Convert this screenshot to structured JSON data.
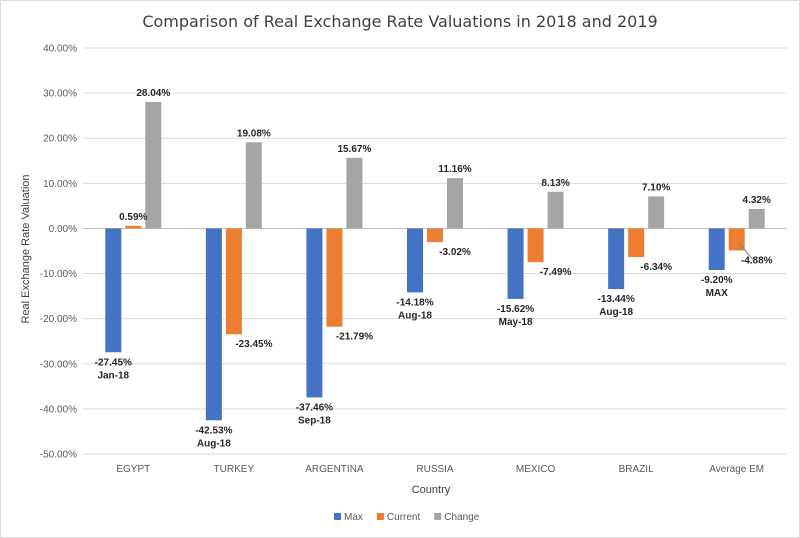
{
  "chart_data": {
    "type": "bar",
    "title": "Comparison of Real Exchange Rate Valuations in 2018 and 2019",
    "xlabel": "Country",
    "ylabel": "Real Exchange Rate Valuation",
    "ylim": [
      -50,
      40
    ],
    "ytick_step": 10,
    "ytick_labels": [
      "40.00%",
      "30.00%",
      "20.00%",
      "10.00%",
      "0.00%",
      "-10.00%",
      "-20.00%",
      "-30.00%",
      "-40.00%",
      "-50.00%"
    ],
    "grid": true,
    "legend_position": "bottom",
    "categories": [
      "EGYPT",
      "TURKEY",
      "ARGENTINA",
      "RUSSIA",
      "MEXICO",
      "BRAZIL",
      "Average EM"
    ],
    "series": [
      {
        "name": "Max",
        "color": "#4472c4",
        "values": [
          -27.45,
          -42.53,
          -37.46,
          -14.18,
          -15.62,
          -13.44,
          -9.2
        ],
        "labels": [
          "-27.45%",
          "-42.53%",
          "-37.46%",
          "-14.18%",
          "-15.62%",
          "-13.44%",
          "-9.20%"
        ],
        "sublabels": [
          "Jan-18",
          "Aug-18",
          "Sep-18",
          "Aug-18",
          "May-18",
          "Aug-18",
          "MAX"
        ]
      },
      {
        "name": "Current",
        "color": "#ed7d31",
        "values": [
          0.59,
          -23.45,
          -21.79,
          -3.02,
          -7.49,
          -6.34,
          -4.88
        ],
        "labels": [
          "0.59%",
          "-23.45%",
          "-21.79%",
          "-3.02%",
          "-7.49%",
          "-6.34%",
          "-4.88%"
        ]
      },
      {
        "name": "Change",
        "color": "#a5a5a5",
        "values": [
          28.04,
          19.08,
          15.67,
          11.16,
          8.13,
          7.1,
          4.32
        ],
        "labels": [
          "28.04%",
          "19.08%",
          "15.67%",
          "11.16%",
          "8.13%",
          "7.10%",
          "4.32%"
        ]
      }
    ]
  }
}
